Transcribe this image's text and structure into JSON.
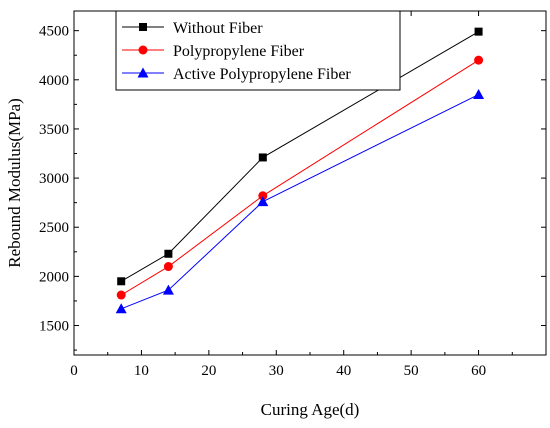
{
  "chart_data": {
    "type": "line",
    "xlabel": "Curing Age(d)",
    "ylabel": "Rebound Modulus(MPa)",
    "xlim": [
      0,
      70
    ],
    "ylim": [
      1200,
      4700
    ],
    "xticks": [
      0,
      10,
      20,
      30,
      40,
      50,
      60
    ],
    "yticks": [
      1500,
      2000,
      2500,
      3000,
      3500,
      4000,
      4500
    ],
    "x": [
      7,
      14,
      28,
      60
    ],
    "grid": false,
    "legend_position": "top-left",
    "series": [
      {
        "name": "Without Fiber",
        "color": "#000000",
        "marker": "square",
        "values": [
          1950,
          2230,
          3210,
          4490
        ]
      },
      {
        "name": "Polypropylene Fiber",
        "color": "#ff0000",
        "marker": "circle",
        "values": [
          1810,
          2100,
          2820,
          4200
        ]
      },
      {
        "name": "Active Polypropylene Fiber",
        "color": "#0000ff",
        "marker": "triangle",
        "values": [
          1670,
          1860,
          2760,
          3850
        ]
      }
    ]
  }
}
